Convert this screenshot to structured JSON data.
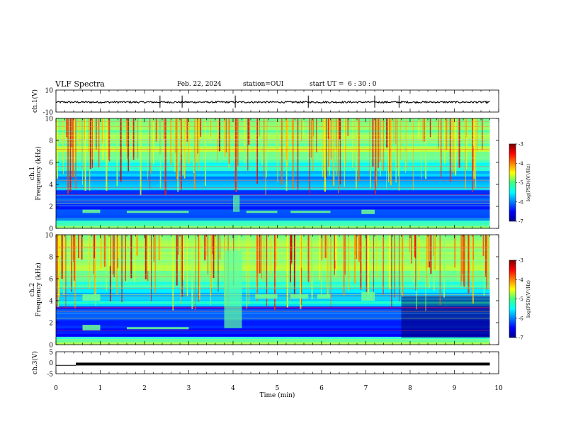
{
  "header": {
    "title": "VLF Spectra",
    "date": "Feb. 22, 2024",
    "station": "station=OUI",
    "start": "start UT =  6 : 30 : 0"
  },
  "chart_data": [
    {
      "type": "line",
      "panel": "ch1-waveform",
      "ylabel": "ch.1(V)",
      "ylim": [
        -10,
        10
      ],
      "y_ticks": [
        "10",
        "-10"
      ],
      "xlim": [
        0,
        10
      ],
      "baseline": -1,
      "spikes_x_min": [
        2.35,
        2.85,
        4.05,
        5.7,
        7.2,
        7.75
      ]
    },
    {
      "type": "heatmap",
      "panel": "ch1-spectrogram",
      "ylabel": "ch.1\nFrequency (kHz)",
      "ylim": [
        0,
        10
      ],
      "y_ticks": [
        "0",
        "2",
        "4",
        "6",
        "8",
        "10"
      ],
      "xlim": [
        0,
        10
      ],
      "data_end_min": 9.8,
      "colorbar": {
        "label": "log(PSD)(V²/Hz)",
        "range": [
          -7,
          -3
        ],
        "ticks": [
          "-3",
          "-4",
          "-5",
          "-6",
          "-7"
        ]
      },
      "features": [
        {
          "kind": "band",
          "x": [
            0.6,
            1.0
          ],
          "f": [
            1.4,
            1.7
          ]
        },
        {
          "kind": "band",
          "x": [
            1.6,
            3.0
          ],
          "f": [
            1.4,
            1.6
          ]
        },
        {
          "kind": "band",
          "x": [
            4.3,
            5.0
          ],
          "f": [
            1.4,
            1.6
          ]
        },
        {
          "kind": "band",
          "x": [
            5.3,
            6.2
          ],
          "f": [
            1.4,
            1.6
          ]
        },
        {
          "kind": "band",
          "x": [
            6.9,
            7.2
          ],
          "f": [
            1.3,
            1.7
          ]
        },
        {
          "kind": "burst",
          "x": [
            4.0,
            4.15
          ],
          "f": [
            1.5,
            3.0
          ]
        }
      ]
    },
    {
      "type": "heatmap",
      "panel": "ch2-spectrogram",
      "ylabel": "ch.2\nFrequency (kHz)",
      "ylim": [
        0,
        10
      ],
      "y_ticks": [
        "0",
        "2",
        "4",
        "6",
        "8",
        "10"
      ],
      "xlim": [
        0,
        10
      ],
      "data_end_min": 9.8,
      "colorbar": {
        "label": "log(PSD)(V²/Hz)",
        "range": [
          -7,
          -3
        ],
        "ticks": [
          "-3",
          "-4",
          "-5",
          "-6",
          "-7"
        ]
      },
      "features": [
        {
          "kind": "band",
          "x": [
            0.6,
            1.0
          ],
          "f": [
            4.0,
            4.6
          ]
        },
        {
          "kind": "band",
          "x": [
            0.6,
            1.0
          ],
          "f": [
            1.3,
            1.8
          ]
        },
        {
          "kind": "band",
          "x": [
            4.5,
            5.0
          ],
          "f": [
            4.2,
            4.6
          ]
        },
        {
          "kind": "band",
          "x": [
            5.3,
            5.7
          ],
          "f": [
            4.2,
            4.6
          ]
        },
        {
          "kind": "band",
          "x": [
            5.9,
            6.2
          ],
          "f": [
            4.2,
            4.6
          ]
        },
        {
          "kind": "band",
          "x": [
            6.9,
            7.2
          ],
          "f": [
            4.0,
            4.8
          ]
        },
        {
          "kind": "band",
          "x": [
            1.6,
            3.0
          ],
          "f": [
            1.4,
            1.6
          ]
        },
        {
          "kind": "burst",
          "x": [
            3.8,
            4.2
          ],
          "f": [
            1.5,
            8.5
          ]
        }
      ]
    },
    {
      "type": "line",
      "panel": "ch3-waveform",
      "ylabel": "ch.3(V)",
      "ylim": [
        -5,
        5
      ],
      "y_ticks": [
        "5",
        "0",
        "-5"
      ],
      "xlim": [
        0,
        10
      ],
      "segments": [
        {
          "x": [
            0,
            0.45
          ],
          "y": -1.2
        },
        {
          "x": [
            0.45,
            9.8
          ],
          "y": -0.6
        }
      ]
    }
  ],
  "x_axis": {
    "label": "Time (min)",
    "ticks": [
      "0",
      "1",
      "2",
      "3",
      "4",
      "5",
      "6",
      "7",
      "8",
      "9",
      "10"
    ]
  }
}
